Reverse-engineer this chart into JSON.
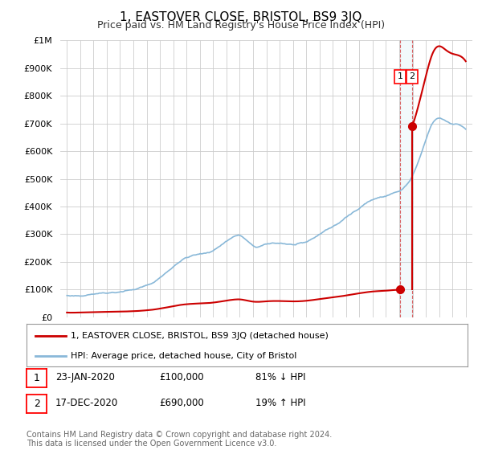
{
  "title": "1, EASTOVER CLOSE, BRISTOL, BS9 3JQ",
  "subtitle": "Price paid vs. HM Land Registry's House Price Index (HPI)",
  "background_color": "#ffffff",
  "plot_bg_color": "#ffffff",
  "grid_color": "#cccccc",
  "hpi_color": "#89b8d8",
  "price_color": "#cc0000",
  "sale1_date_x": 2020.07,
  "sale1_price": 100000,
  "sale2_date_x": 2020.97,
  "sale2_price": 690000,
  "legend_label1": "1, EASTOVER CLOSE, BRISTOL, BS9 3JQ (detached house)",
  "legend_label2": "HPI: Average price, detached house, City of Bristol",
  "table_row1": [
    "1",
    "23-JAN-2020",
    "£100,000",
    "81% ↓ HPI"
  ],
  "table_row2": [
    "2",
    "17-DEC-2020",
    "£690,000",
    "19% ↑ HPI"
  ],
  "footer": "Contains HM Land Registry data © Crown copyright and database right 2024.\nThis data is licensed under the Open Government Licence v3.0.",
  "ylim": [
    0,
    1000000
  ],
  "xlim_start": 1994.5,
  "xlim_end": 2025.5
}
